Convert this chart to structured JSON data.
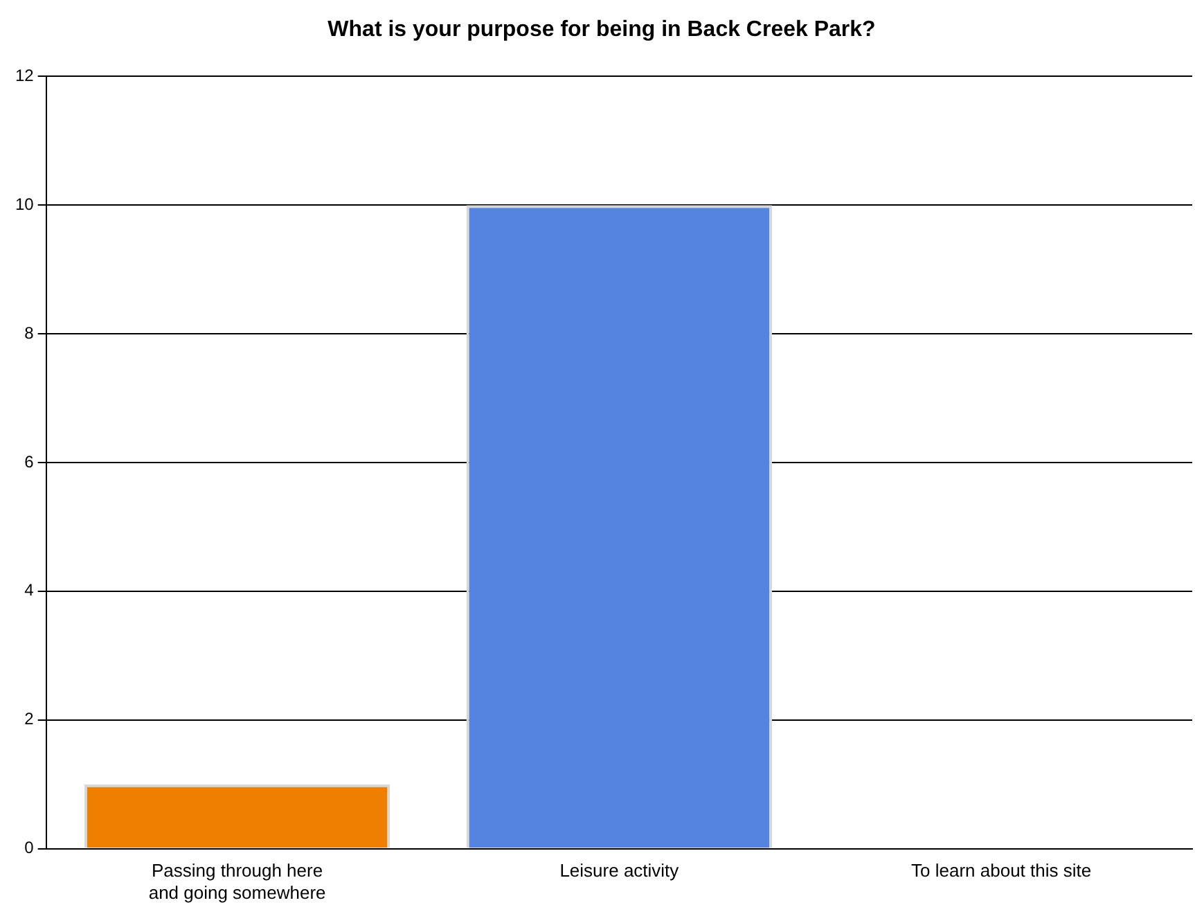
{
  "chart_data": {
    "type": "bar",
    "title": "What is your purpose for being in Back Creek Park?",
    "categories": [
      "Passing through here and going somewhere",
      "Leisure activity",
      "To learn about this site"
    ],
    "values": [
      1,
      10,
      0
    ],
    "colors": [
      "#ee7f00",
      "#5584e0",
      "#c8c8c8"
    ],
    "ylim": [
      0,
      12
    ],
    "yticks": [
      0,
      2,
      4,
      6,
      8,
      10,
      12
    ],
    "grid": "y",
    "legend": false
  }
}
